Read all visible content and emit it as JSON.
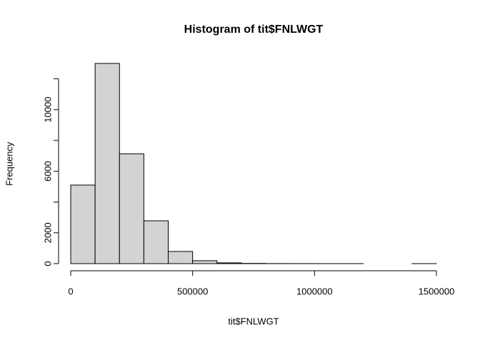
{
  "chart_data": {
    "type": "histogram",
    "title": "Histogram of tit$FNLWGT",
    "x_label": "tit$FNLWGT",
    "y_label": "Frequency",
    "bins": [
      0,
      100000,
      200000,
      300000,
      400000,
      500000,
      600000,
      700000,
      800000,
      900000,
      1000000,
      1100000,
      1200000,
      1300000,
      1400000,
      1500000
    ],
    "values": [
      5100,
      13000,
      7130,
      2780,
      790,
      190,
      50,
      15,
      5,
      3,
      1,
      1,
      0,
      0,
      1
    ],
    "color": "#d3d3d3",
    "xlim": [
      0,
      1500000
    ],
    "xticks": [
      0,
      500000,
      1000000,
      1500000
    ],
    "ylim": [
      0,
      13000
    ],
    "yticks": [
      0,
      2000,
      4000,
      6000,
      8000,
      10000,
      12000
    ]
  }
}
